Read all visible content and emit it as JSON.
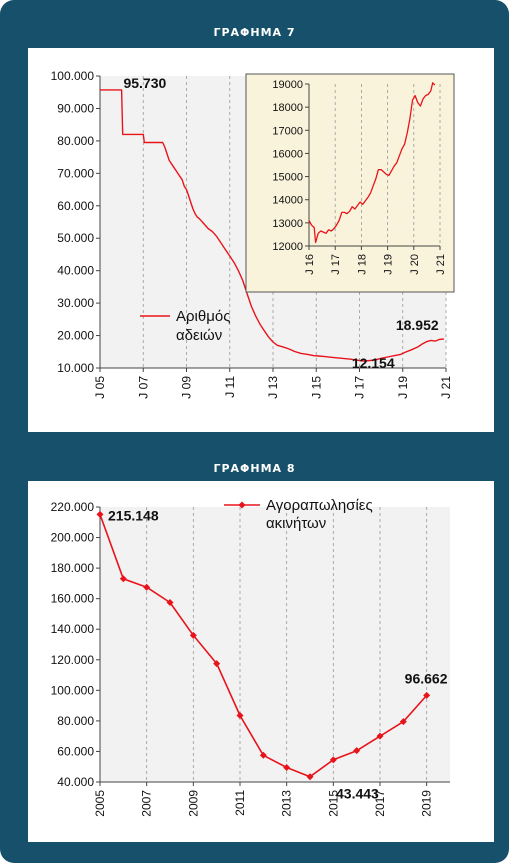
{
  "colors": {
    "background": "#16506a",
    "series": "#e8141b",
    "inset_background": "#faf3dc",
    "plot_background": "#f2f2f2"
  },
  "panel1": {
    "title": "ΓΡΑΦΗΜΑ 7"
  },
  "panel2": {
    "title": "ΓΡΑΦΗΜΑ 8"
  },
  "chart_data": [
    {
      "type": "line",
      "title": "",
      "xlabel": "",
      "ylabel": "",
      "x_tick_labels": [
        "J 05",
        "J 07",
        "J 09",
        "J 11",
        "J 13",
        "J 15",
        "J 17",
        "J 19",
        "J 21"
      ],
      "y_tick_labels": [
        "10.000",
        "20.000",
        "30.000",
        "40.000",
        "50.000",
        "60.000",
        "70.000",
        "80.000",
        "90.000",
        "100.000"
      ],
      "xlim": [
        2005,
        2021
      ],
      "ylim": [
        10000,
        100000
      ],
      "legend": {
        "lines": [
          "Αριθμός",
          "αδειών"
        ],
        "placement": "middle-left"
      },
      "series": [
        {
          "x": [
            2005.0,
            2005.9,
            2006.0,
            2006.05,
            2006.9,
            2007.0,
            2007.05,
            2007.9,
            2008.0,
            2008.2,
            2008.4,
            2008.6,
            2008.8,
            2008.9,
            2009.0,
            2009.1,
            2009.2,
            2009.3,
            2009.4,
            2009.5,
            2009.6,
            2009.8,
            2010.0,
            2010.2,
            2010.4,
            2010.6,
            2010.8,
            2011.0,
            2011.2,
            2011.4,
            2011.6,
            2011.8,
            2012.0,
            2012.2,
            2012.4,
            2012.6,
            2012.8,
            2013.0,
            2013.2,
            2013.4,
            2013.6,
            2013.8,
            2014.0,
            2014.3,
            2014.6,
            2014.9,
            2015.1,
            2015.4,
            2015.7,
            2016.0,
            2016.3,
            2016.6,
            2016.8,
            2017.0,
            2017.2,
            2017.5,
            2017.8,
            2018.0,
            2018.3,
            2018.6,
            2018.9,
            2019.1,
            2019.4,
            2019.7,
            2019.9,
            2020.1,
            2020.3,
            2020.5,
            2020.7,
            2020.9
          ],
          "y": [
            95730,
            95730,
            95730,
            82000,
            82000,
            82000,
            79500,
            79500,
            78000,
            74000,
            72000,
            70000,
            68000,
            66000,
            65000,
            63000,
            61000,
            59000,
            57500,
            56500,
            56000,
            54500,
            53000,
            52000,
            50500,
            48500,
            46500,
            44500,
            42500,
            40000,
            37000,
            33000,
            29000,
            26000,
            23500,
            21500,
            19500,
            18000,
            17000,
            16600,
            16200,
            15700,
            15100,
            14500,
            14200,
            13800,
            13700,
            13500,
            13300,
            13100,
            12900,
            12700,
            12500,
            12300,
            12154,
            12300,
            12600,
            13000,
            13400,
            13800,
            14200,
            14800,
            15600,
            16500,
            17400,
            18100,
            18500,
            18300,
            18800,
            18952
          ]
        }
      ],
      "annotations": [
        {
          "text": "95.730",
          "x": 2005.9,
          "y": 95730
        },
        {
          "text": "18.952",
          "x": 2020.9,
          "y": 18952
        },
        {
          "text": "12.154",
          "x": 2017.2,
          "y": 12154
        }
      ],
      "inset": {
        "type": "line",
        "x_tick_labels": [
          "J 16",
          "J 17",
          "J 18",
          "J 19",
          "J 20",
          "J 21"
        ],
        "y_tick_labels": [
          "12000",
          "13000",
          "14000",
          "15000",
          "16000",
          "17000",
          "18000",
          "19000"
        ],
        "xlim": [
          2016,
          2021
        ],
        "ylim": [
          12000,
          19000
        ],
        "series": [
          {
            "x": [
              2016.0,
              2016.1,
              2016.2,
              2016.25,
              2016.35,
              2016.45,
              2016.55,
              2016.65,
              2016.75,
              2016.85,
              2016.95,
              2017.05,
              2017.15,
              2017.25,
              2017.35,
              2017.45,
              2017.55,
              2017.65,
              2017.75,
              2017.85,
              2017.95,
              2018.05,
              2018.15,
              2018.25,
              2018.35,
              2018.45,
              2018.55,
              2018.65,
              2018.75,
              2018.85,
              2018.95,
              2019.05,
              2019.15,
              2019.25,
              2019.35,
              2019.45,
              2019.55,
              2019.65,
              2019.75,
              2019.85,
              2019.95,
              2020.05,
              2020.15,
              2020.25,
              2020.35,
              2020.45,
              2020.55,
              2020.65,
              2020.72,
              2020.8
            ],
            "y": [
              13100,
              12900,
              12800,
              12150,
              12550,
              12650,
              12600,
              12550,
              12700,
              12650,
              12750,
              12900,
              13100,
              13450,
              13450,
              13400,
              13500,
              13700,
              13600,
              13750,
              13900,
              13800,
              13950,
              14100,
              14300,
              14600,
              14900,
              15300,
              15300,
              15200,
              15100,
              15050,
              15250,
              15450,
              15600,
              15900,
              16200,
              16400,
              16900,
              17500,
              18300,
              18500,
              18200,
              18050,
              18350,
              18500,
              18550,
              18700,
              19050,
              18952
            ]
          }
        ]
      }
    },
    {
      "type": "line",
      "title": "",
      "xlabel": "",
      "ylabel": "",
      "x_tick_labels": [
        "2005",
        "2007",
        "2009",
        "2011",
        "2013",
        "2015",
        "2017",
        "2019"
      ],
      "y_tick_labels": [
        "40.000",
        "60.000",
        "80.000",
        "100.000",
        "120.000",
        "140.000",
        "160.000",
        "180.000",
        "200.000",
        "220.000"
      ],
      "xlim": [
        2005,
        2020
      ],
      "ylim": [
        40000,
        220000
      ],
      "legend": {
        "lines": [
          "Αγοραπωλησίες",
          "ακινήτων"
        ],
        "placement": "top-right"
      },
      "series": [
        {
          "x": [
            2005,
            2006,
            2007,
            2008,
            2009,
            2010,
            2011,
            2012,
            2013,
            2014,
            2015,
            2016,
            2017,
            2018,
            2019
          ],
          "y": [
            215148,
            173000,
            167500,
            157500,
            136000,
            117500,
            83500,
            57500,
            49500,
            43443,
            54500,
            60500,
            70000,
            79500,
            96662
          ]
        }
      ],
      "annotations": [
        {
          "text": "215.148",
          "x": 2005,
          "y": 215148
        },
        {
          "text": "43.443",
          "x": 2014,
          "y": 43443
        },
        {
          "text": "96.662",
          "x": 2019,
          "y": 96662
        }
      ]
    }
  ]
}
